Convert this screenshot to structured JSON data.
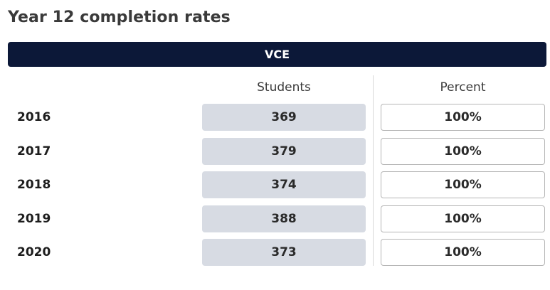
{
  "page": {
    "title": "Year 12 completion rates",
    "section_label": "VCE"
  },
  "table": {
    "headers": {
      "students": "Students",
      "percent": "Percent"
    },
    "rows": [
      {
        "year": "2016",
        "students": "369",
        "percent": "100%"
      },
      {
        "year": "2017",
        "students": "379",
        "percent": "100%"
      },
      {
        "year": "2018",
        "students": "374",
        "percent": "100%"
      },
      {
        "year": "2019",
        "students": "388",
        "percent": "100%"
      },
      {
        "year": "2020",
        "students": "373",
        "percent": "100%"
      }
    ]
  },
  "colors": {
    "section_bar": "#0c1838",
    "students_cell": "#d7dbe3",
    "percent_border": "#b5b5b5"
  }
}
